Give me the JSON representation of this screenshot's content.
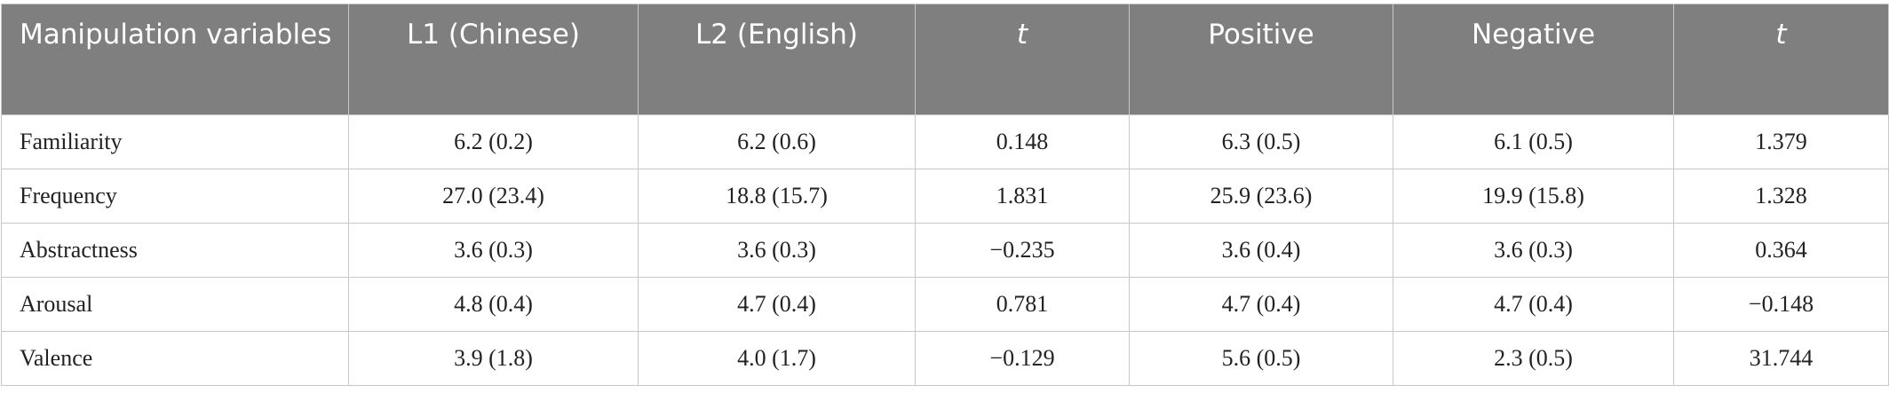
{
  "table": {
    "header": [
      "Manipulation variables",
      "L1 (Chinese)",
      "L2 (English)",
      "t",
      "Positive",
      "Negative",
      "t"
    ],
    "rows": [
      [
        "Familiarity",
        "6.2 (0.2)",
        "6.2 (0.6)",
        "0.148",
        "6.3 (0.5)",
        "6.1 (0.5)",
        "1.379"
      ],
      [
        "Frequency",
        "27.0 (23.4)",
        "18.8 (15.7)",
        "1.831",
        "25.9 (23.6)",
        "19.9 (15.8)",
        "1.328"
      ],
      [
        "Abstractness",
        "3.6 (0.3)",
        "3.6 (0.3)",
        "−0.235",
        "3.6 (0.4)",
        "3.6 (0.3)",
        "0.364"
      ],
      [
        "Arousal",
        "4.8 (0.4)",
        "4.7 (0.4)",
        "0.781",
        "4.7 (0.4)",
        "4.7 (0.4)",
        "−0.148"
      ],
      [
        "Valence",
        "3.9 (1.8)",
        "4.0 (1.7)",
        "−0.129",
        "5.6 (0.5)",
        "2.3 (0.5)",
        "31.744"
      ]
    ]
  }
}
